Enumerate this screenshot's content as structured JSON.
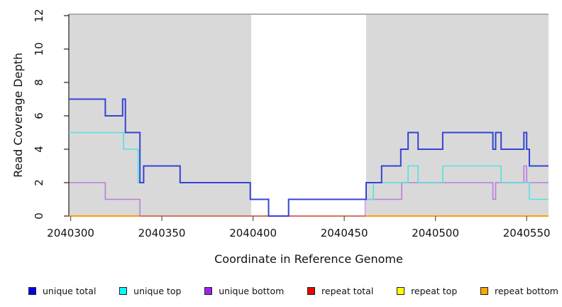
{
  "chart_data": {
    "type": "line",
    "subtype": "step-coverage-plot",
    "title": "",
    "xlabel": "Coordinate in Reference Genome",
    "ylabel": "Read Coverage Depth",
    "xlim": [
      2040299,
      2040562
    ],
    "ylim": [
      0,
      12
    ],
    "x_ticks": [
      2040300,
      2040350,
      2040400,
      2040450,
      2040500,
      2040550
    ],
    "y_ticks": [
      0,
      2,
      4,
      6,
      8,
      10,
      12
    ],
    "grid": false,
    "legend_position": "bottom",
    "panel_color": "#d9d9d9",
    "gap_color": "#ffffff",
    "background_regions": [
      {
        "name": "covered-left",
        "x0": 2040299,
        "x1": 2040399,
        "color": "#d9d9d9"
      },
      {
        "name": "uncovered-gap",
        "x0": 2040399,
        "x1": 2040462,
        "color": "#ffffff"
      },
      {
        "name": "covered-right",
        "x0": 2040462,
        "x1": 2040562,
        "color": "#d9d9d9"
      }
    ],
    "series": [
      {
        "label": "unique total",
        "legend_color": "#0000ee",
        "line_color": "#3344d5",
        "line_width": 2,
        "points": [
          [
            2040299,
            7
          ],
          [
            2040319,
            6
          ],
          [
            2040328.5,
            7
          ],
          [
            2040330,
            5
          ],
          [
            2040338,
            2
          ],
          [
            2040340,
            3
          ],
          [
            2040360,
            2
          ],
          [
            2040398.5,
            1
          ],
          [
            2040408.5,
            0
          ],
          [
            2040419.5,
            1
          ],
          [
            2040462,
            2
          ],
          [
            2040470.5,
            3
          ],
          [
            2040481,
            4
          ],
          [
            2040485,
            5
          ],
          [
            2040490.5,
            4
          ],
          [
            2040504,
            5
          ],
          [
            2040531.5,
            4
          ],
          [
            2040533,
            5
          ],
          [
            2040536,
            4
          ],
          [
            2040548.5,
            5
          ],
          [
            2040550,
            4
          ],
          [
            2040551.5,
            3
          ],
          [
            2040562,
            3
          ]
        ]
      },
      {
        "label": "unique top",
        "legend_color": "#00ffff",
        "line_color": "#55e0e0",
        "line_width": 1.6,
        "points": [
          [
            2040299,
            5
          ],
          [
            2040329,
            4
          ],
          [
            2040337,
            2
          ],
          [
            2040340,
            3
          ],
          [
            2040360,
            2
          ],
          [
            2040398.5,
            1
          ],
          [
            2040408.5,
            0
          ],
          [
            2040419.5,
            1
          ],
          [
            2040466,
            2
          ],
          [
            2040485,
            3
          ],
          [
            2040490.5,
            2
          ],
          [
            2040504,
            3
          ],
          [
            2040536,
            2
          ],
          [
            2040551.5,
            1
          ],
          [
            2040562,
            1
          ]
        ]
      },
      {
        "label": "unique bottom",
        "legend_color": "#a020f0",
        "line_color": "rgba(160,48,224,0.55)",
        "line_width": 1.6,
        "points": [
          [
            2040299,
            2
          ],
          [
            2040319,
            1
          ],
          [
            2040338,
            0
          ],
          [
            2040461.5,
            1
          ],
          [
            2040481.5,
            2
          ],
          [
            2040531.5,
            1
          ],
          [
            2040533,
            2
          ],
          [
            2040548.5,
            3
          ],
          [
            2040550,
            2
          ],
          [
            2040562,
            2
          ]
        ]
      },
      {
        "label": "repeat total",
        "legend_color": "#ee0000",
        "line_color": "#dd2222",
        "line_width": 1.4,
        "points": [
          [
            2040299,
            0
          ],
          [
            2040562,
            0
          ]
        ]
      },
      {
        "label": "repeat top",
        "legend_color": "#ffff00",
        "line_color": "#ffff00",
        "line_width": 1.4,
        "points": [
          [
            2040299,
            0
          ],
          [
            2040562,
            0
          ]
        ]
      },
      {
        "label": "repeat bottom",
        "legend_color": "#ffa500",
        "line_color": "#ff9f10",
        "line_width": 2,
        "points": [
          [
            2040299,
            0
          ],
          [
            2040562,
            0
          ]
        ]
      }
    ],
    "draw_order": [
      4,
      3,
      5,
      2,
      1,
      0
    ]
  }
}
